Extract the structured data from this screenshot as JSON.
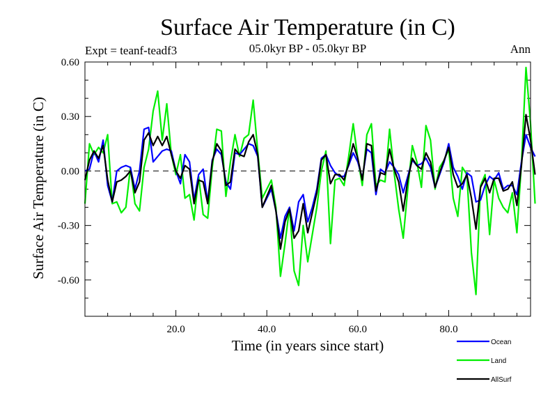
{
  "chart_data": {
    "type": "line",
    "title": "Surface Air Temperature (in C)",
    "subtitle_left": "Expt = teanf-teadf3",
    "subtitle_center": "05.0kyr BP - 05.0kyr BP",
    "subtitle_right": "Ann",
    "xlabel": "Time (in years since start)",
    "ylabel": "Surface Air Temperature (in C)",
    "xlim": [
      0,
      98
    ],
    "ylim": [
      -0.8,
      0.6
    ],
    "xticks": [
      20,
      40,
      60,
      80
    ],
    "xtick_labels": [
      "20.0",
      "40.0",
      "60.0",
      "80.0"
    ],
    "yticks": [
      0.6,
      0.3,
      0.0,
      -0.3,
      -0.6
    ],
    "ytick_labels": [
      "0.60",
      "0.30",
      "0.00",
      "-0.30",
      "-0.60"
    ],
    "zero_line": true,
    "x_start": 0,
    "x_step": 1,
    "series": [
      {
        "name": "Ocean",
        "color": "#0000ff",
        "values": [
          0.0,
          0.01,
          0.11,
          0.05,
          0.17,
          -0.08,
          -0.17,
          0.0,
          0.02,
          0.03,
          0.02,
          -0.1,
          0.0,
          0.23,
          0.24,
          0.05,
          0.08,
          0.11,
          0.12,
          0.11,
          0.0,
          -0.07,
          0.09,
          0.05,
          -0.16,
          -0.02,
          0.01,
          -0.17,
          0.06,
          0.12,
          0.09,
          -0.06,
          -0.1,
          0.1,
          0.09,
          0.12,
          0.15,
          0.14,
          0.08,
          -0.2,
          -0.15,
          -0.1,
          -0.22,
          -0.37,
          -0.25,
          -0.2,
          -0.33,
          -0.17,
          -0.13,
          -0.28,
          -0.2,
          -0.1,
          0.07,
          0.09,
          0.03,
          -0.01,
          -0.03,
          -0.03,
          0.03,
          0.1,
          0.05,
          -0.04,
          0.12,
          0.1,
          -0.13,
          0.01,
          -0.01,
          0.05,
          0.02,
          -0.02,
          -0.12,
          -0.03,
          0.06,
          0.03,
          0.04,
          0.07,
          0.02,
          -0.09,
          -0.02,
          0.05,
          0.15,
          0.02,
          -0.03,
          -0.1,
          -0.01,
          -0.03,
          -0.17,
          -0.16,
          -0.08,
          -0.03,
          -0.05,
          -0.01,
          -0.1,
          -0.08,
          -0.08,
          -0.13,
          0.05,
          0.2,
          0.13,
          0.08
        ]
      },
      {
        "name": "Land",
        "color": "#00ee00",
        "values": [
          -0.18,
          0.15,
          0.09,
          0.13,
          0.1,
          0.2,
          -0.18,
          -0.17,
          -0.23,
          -0.2,
          0.02,
          -0.18,
          -0.22,
          0.02,
          0.12,
          0.33,
          0.44,
          0.17,
          0.37,
          0.09,
          -0.02,
          0.09,
          -0.15,
          -0.13,
          -0.27,
          -0.03,
          -0.24,
          -0.26,
          0.02,
          0.23,
          0.22,
          -0.14,
          0.05,
          0.2,
          0.08,
          0.18,
          0.2,
          0.39,
          0.11,
          -0.15,
          -0.1,
          -0.05,
          -0.2,
          -0.58,
          -0.4,
          -0.2,
          -0.55,
          -0.63,
          -0.3,
          -0.5,
          -0.35,
          -0.2,
          0.0,
          0.11,
          -0.4,
          -0.05,
          -0.04,
          -0.08,
          0.08,
          0.26,
          0.07,
          -0.08,
          0.2,
          0.26,
          -0.08,
          -0.05,
          -0.06,
          0.23,
          -0.01,
          -0.21,
          -0.37,
          -0.1,
          0.14,
          0.05,
          -0.09,
          0.25,
          0.17,
          -0.1,
          0.02,
          0.06,
          0.12,
          -0.15,
          -0.25,
          0.02,
          -0.02,
          -0.45,
          -0.68,
          -0.08,
          -0.02,
          -0.35,
          -0.05,
          -0.15,
          -0.2,
          -0.23,
          -0.12,
          -0.34,
          0.04,
          0.57,
          0.26,
          -0.18
        ]
      },
      {
        "name": "AllSurf",
        "color": "#000000",
        "values": [
          -0.05,
          0.06,
          0.11,
          0.07,
          0.14,
          -0.05,
          -0.17,
          -0.06,
          -0.05,
          -0.03,
          0.0,
          -0.12,
          -0.06,
          0.17,
          0.21,
          0.14,
          0.19,
          0.14,
          0.19,
          0.09,
          0.0,
          -0.04,
          0.03,
          0.01,
          -0.18,
          -0.05,
          -0.06,
          -0.18,
          0.05,
          0.15,
          0.11,
          -0.08,
          -0.06,
          0.12,
          0.09,
          0.08,
          0.16,
          0.2,
          0.09,
          -0.2,
          -0.14,
          -0.08,
          -0.22,
          -0.43,
          -0.28,
          -0.21,
          -0.37,
          -0.33,
          -0.18,
          -0.34,
          -0.23,
          -0.12,
          0.06,
          0.09,
          -0.07,
          -0.02,
          -0.02,
          -0.05,
          0.04,
          0.15,
          0.07,
          -0.05,
          0.15,
          0.14,
          -0.11,
          -0.01,
          -0.02,
          0.12,
          0.01,
          -0.06,
          -0.22,
          -0.05,
          0.07,
          0.03,
          0.01,
          0.1,
          0.05,
          -0.09,
          -0.01,
          0.06,
          0.13,
          -0.02,
          -0.09,
          -0.07,
          -0.02,
          -0.15,
          -0.32,
          -0.09,
          -0.04,
          -0.12,
          -0.04,
          -0.04,
          -0.11,
          -0.1,
          -0.06,
          -0.19,
          0.03,
          0.31,
          0.17,
          -0.02
        ]
      }
    ],
    "legend_position": "bottom-right"
  }
}
